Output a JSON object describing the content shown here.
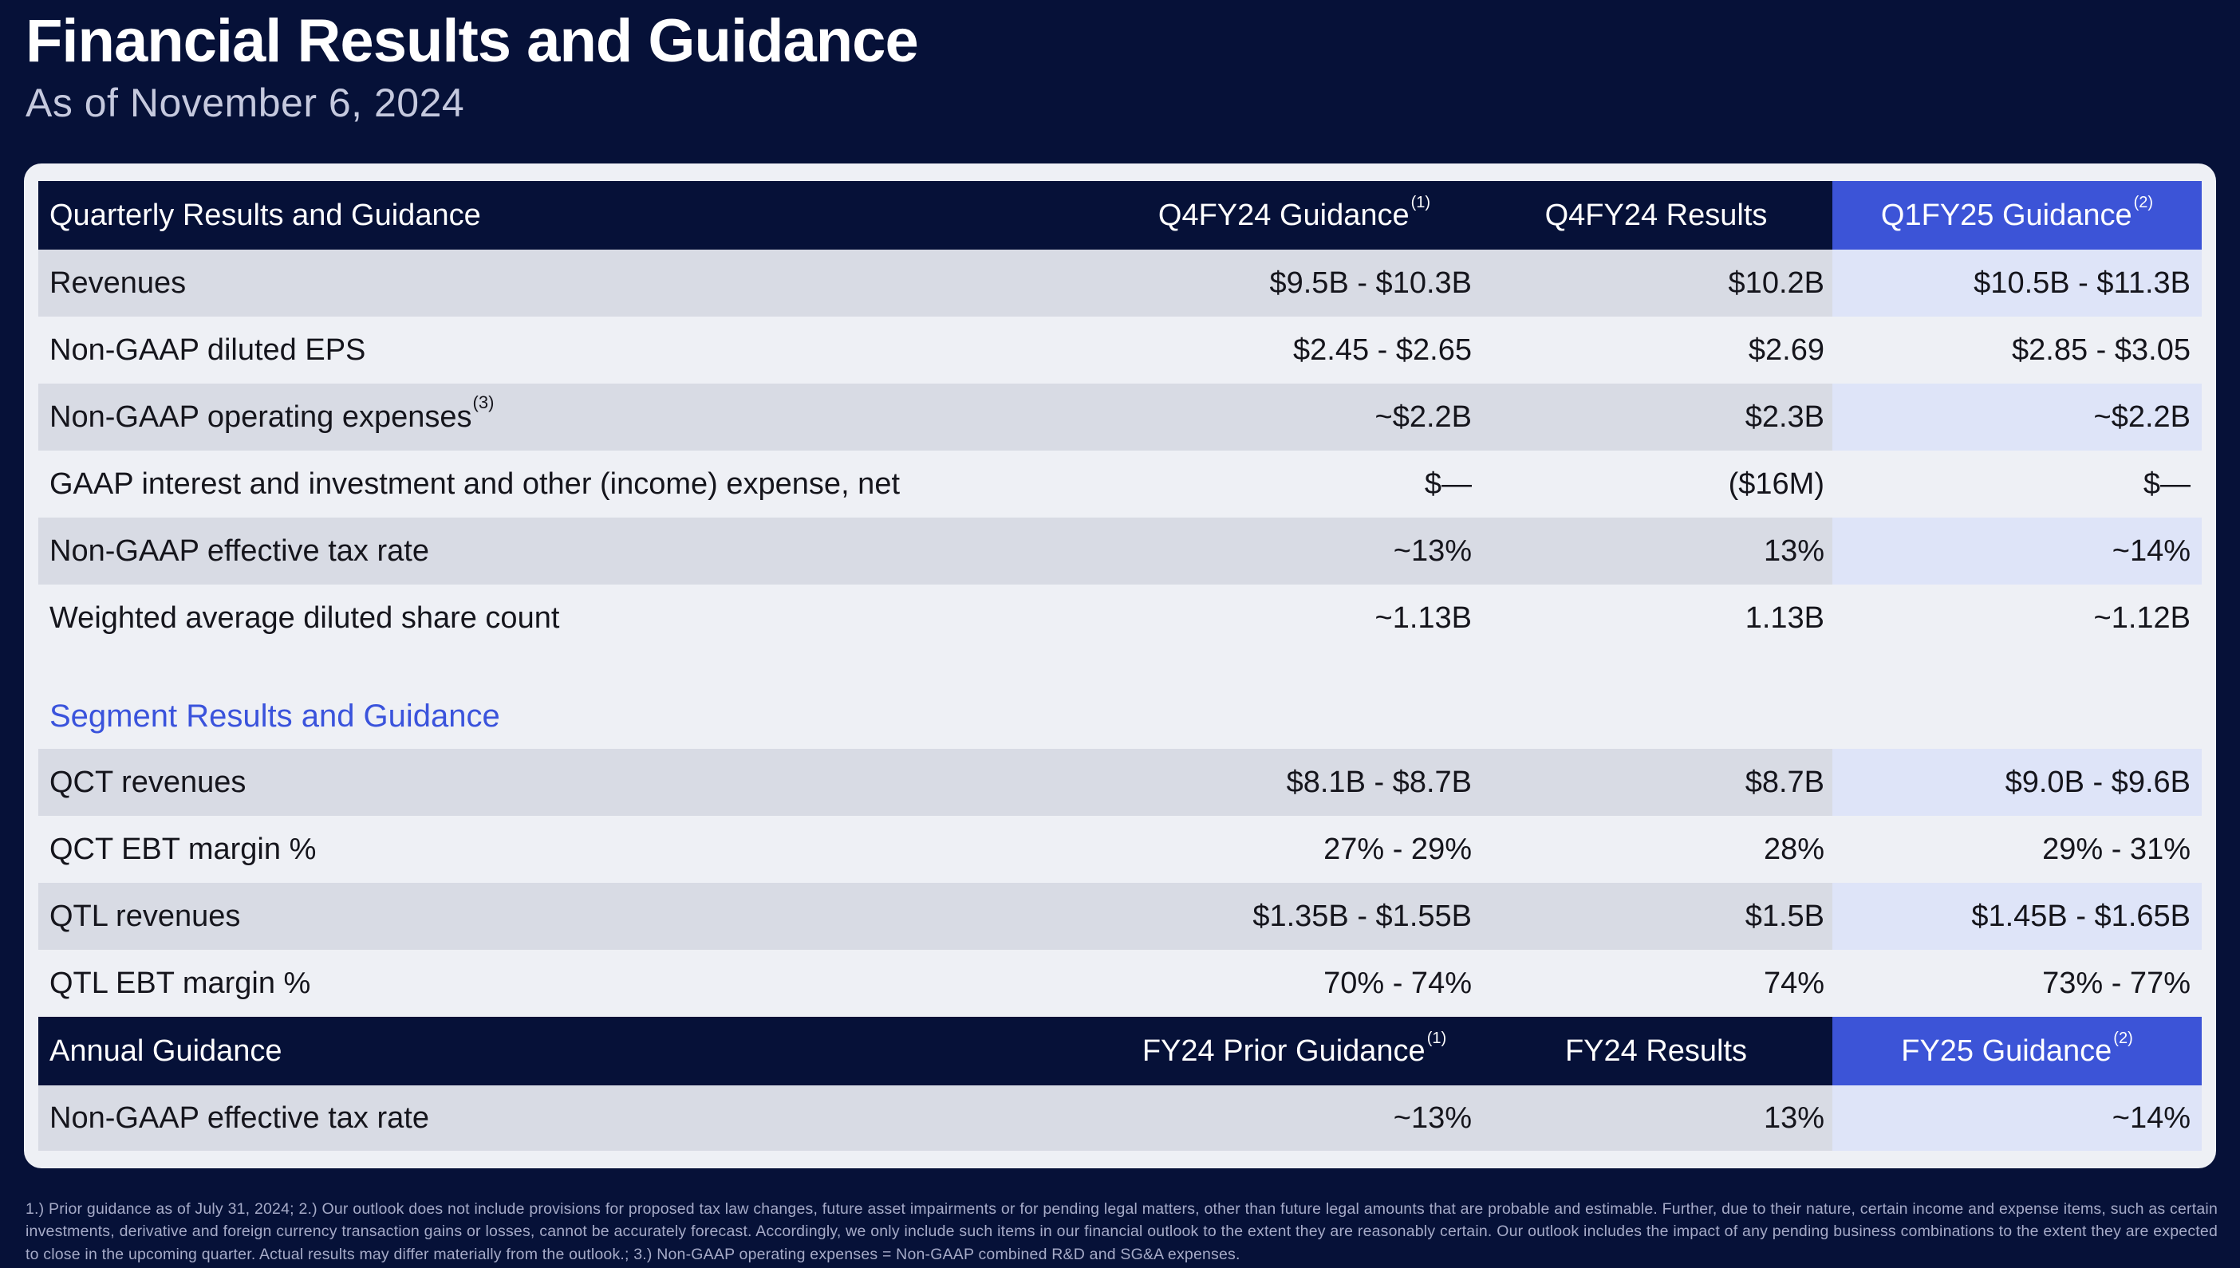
{
  "header": {
    "title": "Financial Results and Guidance",
    "subtitle": "As of November 6, 2024"
  },
  "colors": {
    "background_navy": "#061138",
    "accent_blue": "#3C54D7",
    "highlight_cell_blue": "#DEE4F8",
    "stripe_gray": "#D8DBE4",
    "card_background": "#EEF0F5",
    "segment_heading_blue": "#3A53DC"
  },
  "quarterly": {
    "band_label": "Quarterly Results and Guidance",
    "columns": [
      {
        "label": "Q4FY24 Guidance",
        "sup": "(1)"
      },
      {
        "label": "Q4FY24 Results"
      },
      {
        "label": "Q1FY25 Guidance",
        "sup": "(2)"
      }
    ],
    "rows": [
      {
        "label": "Revenues",
        "values": [
          "$9.5B - $10.3B",
          "$10.2B",
          "$10.5B - $11.3B"
        ]
      },
      {
        "label": "Non-GAAP diluted EPS",
        "values": [
          "$2.45 - $2.65",
          "$2.69",
          "$2.85 - $3.05"
        ]
      },
      {
        "label": "Non-GAAP operating expenses",
        "sup": "(3)",
        "values": [
          "~$2.2B",
          "$2.3B",
          "~$2.2B"
        ]
      },
      {
        "label": "GAAP interest and investment and other (income) expense, net",
        "values": [
          "$—",
          "($16M)",
          "$—"
        ]
      },
      {
        "label": "Non-GAAP effective tax rate",
        "values": [
          "~13%",
          "13%",
          "~14%"
        ]
      },
      {
        "label": "Weighted average diluted share count",
        "values": [
          "~1.13B",
          "1.13B",
          "~1.12B"
        ]
      }
    ]
  },
  "segment": {
    "heading": "Segment Results and Guidance",
    "rows": [
      {
        "label": "QCT revenues",
        "values": [
          "$8.1B - $8.7B",
          "$8.7B",
          "$9.0B - $9.6B"
        ]
      },
      {
        "label": "QCT EBT margin %",
        "values": [
          "27% - 29%",
          "28%",
          "29% - 31%"
        ]
      },
      {
        "label": "QTL revenues",
        "values": [
          "$1.35B - $1.55B",
          "$1.5B",
          "$1.45B - $1.65B"
        ]
      },
      {
        "label": "QTL EBT margin %",
        "values": [
          "70% - 74%",
          "74%",
          "73% - 77%"
        ]
      }
    ]
  },
  "annual": {
    "band_label": "Annual Guidance",
    "columns": [
      {
        "label": "FY24 Prior Guidance",
        "sup": "(1)"
      },
      {
        "label": "FY24 Results"
      },
      {
        "label": "FY25 Guidance",
        "sup": "(2)"
      }
    ],
    "rows": [
      {
        "label": "Non-GAAP effective tax rate",
        "values": [
          "~13%",
          "13%",
          "~14%"
        ]
      }
    ]
  },
  "footnote": "1.) Prior guidance as of July 31, 2024; 2.) Our outlook does not include provisions for proposed tax law changes, future asset impairments or for pending legal matters, other than future legal amounts that are probable and estimable. Further, due to their nature, certain income and expense items, such as certain investments, derivative and foreign currency transaction gains or losses, cannot be accurately forecast. Accordingly, we only include such items in our financial outlook to the extent they are reasonably certain. Our outlook includes the impact of any pending business combinations to the extent they are expected to close in the upcoming quarter. Actual results may differ materially from the outlook.; 3.) Non-GAAP operating expenses = Non-GAAP combined R&D and SG&A expenses."
}
